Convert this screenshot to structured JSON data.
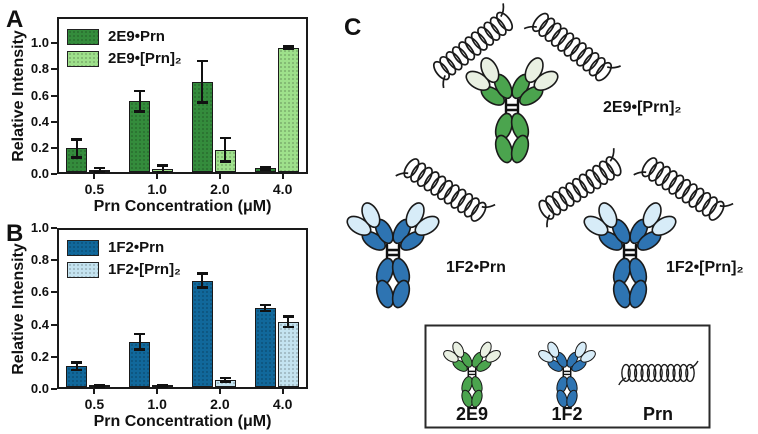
{
  "panels": {
    "a": {
      "letter": "A"
    },
    "b": {
      "letter": "B"
    },
    "c": {
      "letter": "C"
    }
  },
  "chart_data": [
    {
      "id": "a",
      "type": "bar",
      "categories": [
        "0.5",
        "1.0",
        "2.0",
        "4.0"
      ],
      "series": [
        {
          "name": "2E9•Prn",
          "color": "#348c3c",
          "values": [
            0.18,
            0.54,
            0.69,
            0.03
          ],
          "errors": [
            0.07,
            0.08,
            0.16,
            0.012
          ]
        },
        {
          "name": "2E9•[Prn]₂",
          "color": "#9ee08b",
          "values": [
            0.012,
            0.022,
            0.17,
            0.95
          ],
          "errors": [
            0.022,
            0.028,
            0.09,
            0.012
          ]
        }
      ],
      "xlabel": "Prn Concentration (μM)",
      "ylabel": "Relative Intensity",
      "ylim": [
        0,
        1.2
      ],
      "ytick_labels": [
        "0.0",
        "0.2",
        "0.4",
        "0.6",
        "0.8",
        "1.0"
      ],
      "legend_position": "upper-left",
      "grid": false
    },
    {
      "id": "b",
      "type": "bar",
      "categories": [
        "0.5",
        "1.0",
        "2.0",
        "4.0"
      ],
      "series": [
        {
          "name": "1F2•Prn",
          "color": "#11689b",
          "values": [
            0.13,
            0.28,
            0.66,
            0.49
          ],
          "errors": [
            0.025,
            0.05,
            0.045,
            0.02
          ]
        },
        {
          "name": "1F2•[Prn]₂",
          "color": "#c4e3f0",
          "values": [
            0.008,
            0.008,
            0.045,
            0.405
          ],
          "errors": [
            0.006,
            0.006,
            0.012,
            0.035
          ]
        }
      ],
      "xlabel": "Prn Concentration (μM)",
      "ylabel": "Relative Intensity",
      "ylim": [
        0,
        1.0
      ],
      "ytick_labels": [
        "0.0",
        "0.2",
        "0.4",
        "0.6",
        "0.8",
        "1.0"
      ],
      "legend_position": "upper-left",
      "grid": false
    }
  ],
  "panel_c": {
    "molecules": [
      {
        "label": "2E9•[Prn]₂"
      },
      {
        "label": "1F2•Prn"
      },
      {
        "label": "1F2•[Prn]₂"
      }
    ],
    "legend_items": [
      "2E9",
      "1F2",
      "Prn"
    ],
    "colors": {
      "green": "#4ba44e",
      "green_light": "#e9f0e2",
      "blue": "#2e74b2",
      "blue_light": "#d7ecf8",
      "coil": "#1a1a1a"
    }
  }
}
